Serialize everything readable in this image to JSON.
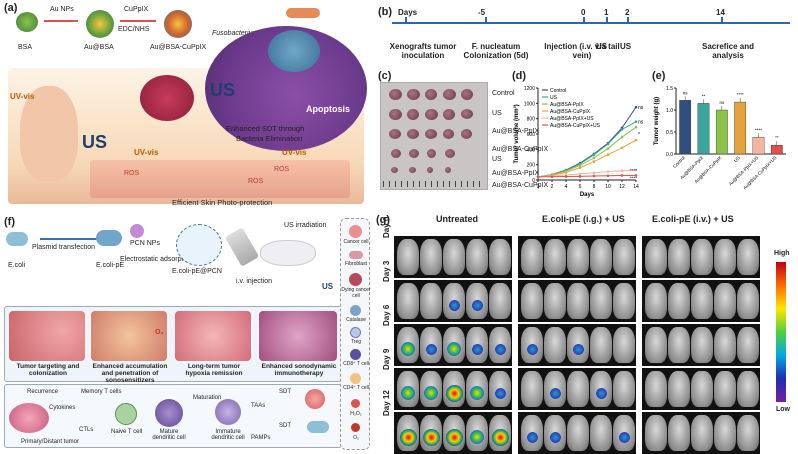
{
  "panels": {
    "a": {
      "label": "(a)",
      "chem": [
        "BSA",
        "Au NPs",
        "Au@BSA",
        "CuPpIX",
        "EDC/NHS",
        "Au@BSA-CuPpIX"
      ],
      "texts": {
        "fuso": "Fusobacterium nucleatum",
        "apoptosis": "Apoptosis",
        "us1": "US",
        "us2": "US",
        "uvvis1": "UV-vis",
        "uvvis2": "UV-vis",
        "uvvis3": "UV-vis",
        "enhanced": "Enhanced SDT through",
        "bacteria": "Bacteria Elimination",
        "ros1": "ROS",
        "ros2": "ROS",
        "ros3": "ROS",
        "skin": "Efficient Skin Photo-protection"
      }
    },
    "b": {
      "label": "(b)",
      "days_label": "Days",
      "timeline": [
        {
          "day": "-5",
          "text": "F. nucleatum Colonization (5d)"
        },
        {
          "day": "0",
          "text": "Injection (i.v. via tail vein)"
        },
        {
          "day": "1",
          "text": "US"
        },
        {
          "day": "2",
          "text": "US"
        },
        {
          "day": "14",
          "text": "Sacrefice and analysis"
        }
      ],
      "start_text": "Xenografts tumor inoculation"
    },
    "c": {
      "label": "(c)",
      "groups": [
        "Control",
        "US",
        "Au@BSA-PpIX",
        "Au@BSA-CuPpIX",
        "US",
        "Au@BSA-PpIX",
        "Au@BSA-CuPpIX"
      ]
    },
    "f": {
      "label": "(f)",
      "items": {
        "ecoli": "E.coli",
        "plasmid": "Plasmid transfection",
        "ecolipe": "E.coli-pE",
        "pcn": "PCN NPs",
        "electro": "Electrostatic adsorption",
        "ecolipcn": "E.coli-pE@PCN",
        "usirr": "US irradiation",
        "iv": "i.v. injection",
        "us": "US",
        "o2": "O₂",
        "s1": "Tumor targeting and colonization",
        "s2": "Enhanced accumulation and penetration of sonosensitizers",
        "s3": "Long-term tumor hypoxia remission",
        "s4": "Enhanced sonodynamic immunotherapy",
        "recurrence": "Recurrence",
        "memory": "Memory T cells",
        "cytokines": "Cytokines",
        "ctls": "CTLs",
        "primary": "Primary/Distant tumor",
        "naive": "Naive T cell",
        "mature": "Mature dendritic cell",
        "maturation": "Maturation",
        "immature": "Immature dendritic cell",
        "taas": "TAAs",
        "pamps": "PAMPs",
        "sdt1": "SDT",
        "sdt2": "SDT"
      },
      "legend": [
        "Cancer cell",
        "Fibroblast",
        "Dying cancer cell",
        "Catalase",
        "Treg",
        "CD8⁺ T cell",
        "CD4⁺ T cell",
        "H₂O₂",
        "O₂"
      ]
    },
    "g": {
      "label": "(g)",
      "groups": [
        "Untreated",
        "E.coli-pE (i.g.) + US",
        "E.coli-pE (i.v.) + US"
      ],
      "rows": [
        "Day 0",
        "Day 3",
        "Day 6",
        "Day 9",
        "Day 12"
      ],
      "colorbar_high": "High",
      "colorbar_low": "Low"
    }
  },
  "chart_data": [
    {
      "type": "line",
      "panel": "(d)",
      "xlabel": "Days",
      "ylabel": "Tumor volume (mm³)",
      "xlim": [
        0,
        14
      ],
      "ylim": [
        0,
        1200
      ],
      "xticks": [
        0,
        2,
        4,
        6,
        8,
        10,
        12,
        14
      ],
      "yticks": [
        0,
        200,
        400,
        600,
        800,
        1000,
        1200
      ],
      "x": [
        0,
        2,
        4,
        6,
        8,
        10,
        12,
        14
      ],
      "series": [
        {
          "name": "Control",
          "color": "#2f4f7f",
          "values": [
            40,
            70,
            130,
            220,
            340,
            480,
            680,
            950
          ]
        },
        {
          "name": "US",
          "color": "#3aa59a",
          "values": [
            40,
            70,
            125,
            210,
            330,
            470,
            660,
            760
          ]
        },
        {
          "name": "Au@BSA-PpIX",
          "color": "#8bc34a",
          "values": [
            40,
            65,
            115,
            190,
            290,
            410,
            560,
            690
          ]
        },
        {
          "name": "Au@BSA-CuPpIX",
          "color": "#e6a23c",
          "values": [
            40,
            60,
            100,
            160,
            240,
            330,
            420,
            520
          ]
        },
        {
          "name": "Au@BSA-PpIX+US",
          "color": "#f2b6a0",
          "values": [
            40,
            50,
            65,
            80,
            95,
            110,
            120,
            130
          ]
        },
        {
          "name": "Au@BSA-CuPpIX+US",
          "color": "#e0504a",
          "values": [
            40,
            42,
            45,
            48,
            52,
            55,
            58,
            60
          ]
        }
      ],
      "annotations": [
        "ns",
        "ns",
        "*",
        "****",
        "****"
      ]
    },
    {
      "type": "bar",
      "panel": "(e)",
      "ylabel": "Tumor weight (g)",
      "ylim": [
        0,
        1.5
      ],
      "yticks": [
        0.0,
        0.5,
        1.0,
        1.5
      ],
      "categories": [
        "Control",
        "Au@BSA-PpIX",
        "Au@BSA-CuPpIX",
        "US",
        "Au@BSA-PpIX+US",
        "Au@BSA-CuPpIX+US"
      ],
      "values": [
        1.22,
        1.15,
        1.0,
        1.18,
        0.38,
        0.2
      ],
      "colors": [
        "#2f4f7f",
        "#3aa59a",
        "#8bc34a",
        "#e6a23c",
        "#f2b6a0",
        "#e0504a"
      ],
      "annotations": [
        "ns",
        "**",
        "ns",
        "****",
        "****",
        "**"
      ]
    }
  ]
}
